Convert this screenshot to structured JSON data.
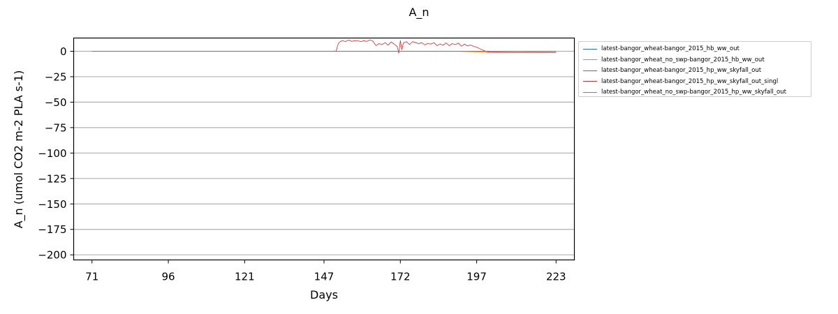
{
  "chart_data": {
    "type": "line",
    "title": "A_n",
    "xlabel": "Days",
    "ylabel": "A_n (umol CO2 m-2 PLA s-1)",
    "xlim": [
      65,
      229
    ],
    "ylim": [
      -205,
      13
    ],
    "xticks": [
      71,
      96,
      121,
      147,
      172,
      197,
      223
    ],
    "yticks": [
      0,
      -25,
      -50,
      -75,
      -100,
      -125,
      -150,
      -175,
      -200
    ],
    "grid": "horizontal",
    "legend_position": "outside-right",
    "series": [
      {
        "name": "latest-bangor_wheat-bangor_2015_hb_ww_out",
        "color": "#1f77b4",
        "x": [
          71,
          100,
          150,
          190,
          200,
          223
        ],
        "y": [
          0,
          0,
          0,
          0,
          0,
          0
        ]
      },
      {
        "name": "latest-bangor_wheat_no_swp-bangor_2015_hb_ww_out",
        "color": "#ff7f0e",
        "x": [
          71,
          100,
          150,
          190,
          199,
          201,
          223
        ],
        "y": [
          0,
          0,
          0,
          0,
          -0.8,
          -1.2,
          -1.3
        ]
      },
      {
        "name": "latest-bangor_wheat-bangor_2015_hp_ww_skyfall_out",
        "color": "#2ca02c",
        "x": [
          71,
          100,
          150,
          190,
          200,
          223
        ],
        "y": [
          0,
          0,
          0,
          0,
          0,
          0
        ]
      },
      {
        "name": "latest-bangor_wheat-bangor_2015_hp_ww_skyfall_out_singl",
        "color": "#d62728",
        "x": [
          71,
          150,
          151,
          151.5,
          152,
          153,
          154,
          155,
          156,
          157,
          158,
          159,
          160,
          161,
          162,
          163,
          164,
          165,
          166,
          167,
          168,
          169,
          170,
          171,
          171.5,
          172,
          172.5,
          173,
          174,
          175,
          176,
          177,
          178,
          179,
          180,
          181,
          182,
          183,
          184,
          185,
          186,
          187,
          188,
          189,
          190,
          191,
          192,
          193,
          194,
          195,
          196,
          197,
          198,
          199,
          200,
          201,
          205,
          210,
          215,
          223
        ],
        "y": [
          0,
          0,
          0.3,
          6,
          9,
          10.5,
          9.5,
          11,
          9.8,
          10.2,
          10.5,
          9.5,
          10.3,
          9.7,
          11.2,
          10,
          5.5,
          7.5,
          6.5,
          8.5,
          6,
          9.2,
          7,
          4.5,
          -2,
          10.5,
          1.5,
          8.2,
          9.5,
          6.5,
          9.5,
          8.5,
          7.5,
          8.5,
          6.2,
          7.8,
          7,
          8.5,
          5.5,
          7.2,
          6,
          8.2,
          5.5,
          7.5,
          6.5,
          8,
          5,
          7,
          5.2,
          6.1,
          4.8,
          4,
          2.5,
          1.2,
          0,
          -0.8,
          -1,
          -1.2,
          -1.1,
          -1.2
        ]
      },
      {
        "name": "latest-bangor_wheat_no_swp-bangor_2015_hp_ww_skyfall_out",
        "color": "#7f7f7f",
        "x": [
          71,
          100,
          150,
          190,
          200,
          223
        ],
        "y": [
          0,
          0,
          0,
          0,
          0,
          0
        ]
      }
    ]
  }
}
